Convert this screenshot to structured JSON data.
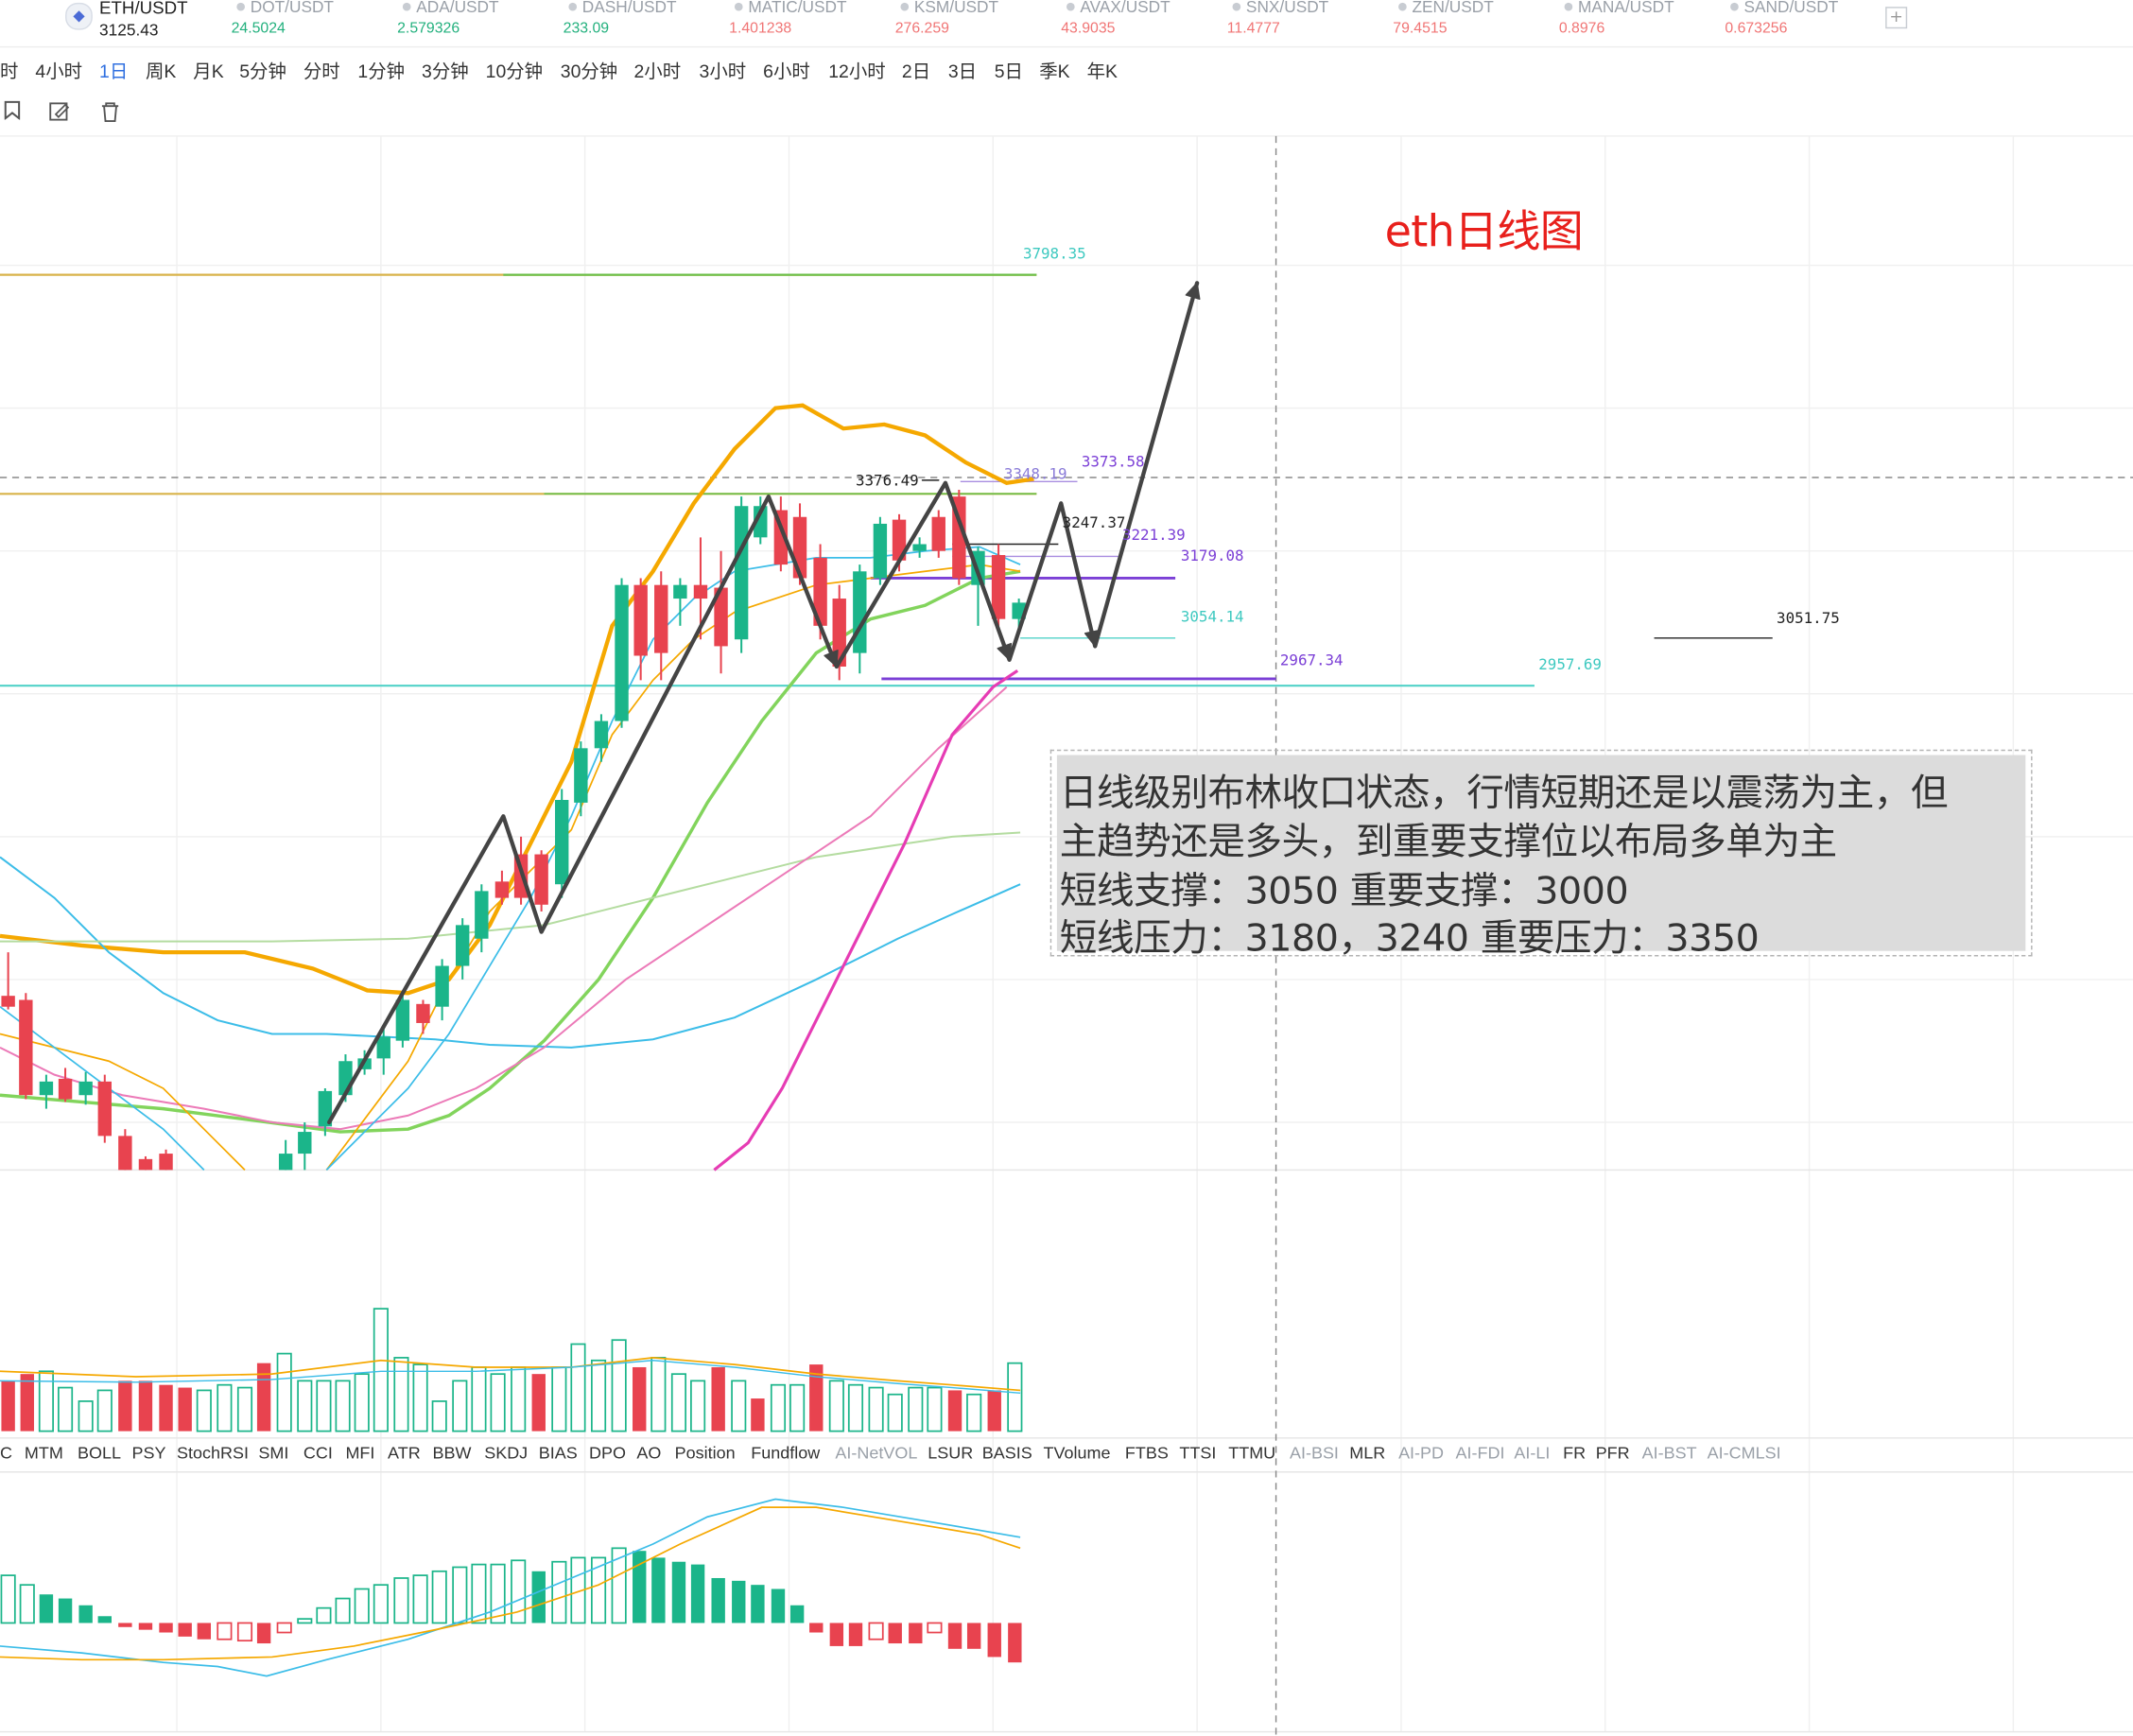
{
  "ticker": {
    "main": {
      "symbol": "ETH/USDT",
      "price": "3125.43"
    },
    "items": [
      {
        "symbol": "DOT/USDT",
        "price": "24.5024",
        "color": "#22b07d"
      },
      {
        "symbol": "ADA/USDT",
        "price": "2.579326",
        "color": "#22b07d"
      },
      {
        "symbol": "DASH/USDT",
        "price": "233.09",
        "color": "#22b07d"
      },
      {
        "symbol": "MATIC/USDT",
        "price": "1.401238",
        "color": "#f07575"
      },
      {
        "symbol": "KSM/USDT",
        "price": "276.259",
        "color": "#f07575"
      },
      {
        "symbol": "AVAX/USDT",
        "price": "43.9035",
        "color": "#f07575"
      },
      {
        "symbol": "SNX/USDT",
        "price": "11.4777",
        "color": "#f07575"
      },
      {
        "symbol": "ZEN/USDT",
        "price": "79.4515",
        "color": "#f07575"
      },
      {
        "symbol": "MANA/USDT",
        "price": "0.8976",
        "color": "#f07575"
      },
      {
        "symbol": "SAND/USDT",
        "price": "0.673256",
        "color": "#f07575"
      }
    ],
    "add_label": "+"
  },
  "timeframes": [
    "时",
    "4小时",
    "1日",
    "周K",
    "月K",
    "5分钟",
    "分时",
    "1分钟",
    "3分钟",
    "10分钟",
    "30分钟",
    "2小时",
    "3小时",
    "6小时",
    "12小时",
    "2日",
    "3日",
    "5日",
    "季K",
    "年K"
  ],
  "active_timeframe": "1日",
  "tools": [
    "bookmark-icon",
    "edit-icon",
    "trash-icon"
  ],
  "indicators": [
    {
      "label": "C",
      "ai": false
    },
    {
      "label": "MTM",
      "ai": false
    },
    {
      "label": "BOLL",
      "ai": false
    },
    {
      "label": "PSY",
      "ai": false
    },
    {
      "label": "StochRSI",
      "ai": false
    },
    {
      "label": "SMI",
      "ai": false
    },
    {
      "label": "CCI",
      "ai": false
    },
    {
      "label": "MFI",
      "ai": false
    },
    {
      "label": "ATR",
      "ai": false
    },
    {
      "label": "BBW",
      "ai": false
    },
    {
      "label": "SKDJ",
      "ai": false
    },
    {
      "label": "BIAS",
      "ai": false
    },
    {
      "label": "DPO",
      "ai": false
    },
    {
      "label": "AO",
      "ai": false
    },
    {
      "label": "Position",
      "ai": false
    },
    {
      "label": "Fundflow",
      "ai": false
    },
    {
      "label": "AI-NetVOL",
      "ai": true
    },
    {
      "label": "LSUR",
      "ai": false
    },
    {
      "label": "BASIS",
      "ai": false
    },
    {
      "label": "TVolume",
      "ai": false
    },
    {
      "label": "FTBS",
      "ai": false
    },
    {
      "label": "TTSI",
      "ai": false
    },
    {
      "label": "TTMU",
      "ai": false
    },
    {
      "label": "AI-BSI",
      "ai": true
    },
    {
      "label": "MLR",
      "ai": false
    },
    {
      "label": "AI-PD",
      "ai": true
    },
    {
      "label": "AI-FDI",
      "ai": true
    },
    {
      "label": "AI-LI",
      "ai": true
    },
    {
      "label": "FR",
      "ai": false
    },
    {
      "label": "PFR",
      "ai": false
    },
    {
      "label": "AI-BST",
      "ai": true
    },
    {
      "label": "AI-CMLSI",
      "ai": true
    }
  ],
  "annotation": {
    "title": "eth日线图",
    "note_lines": [
      "日线级别布林收口状态，行情短期还是以震荡为主，但",
      "主趋势还是多头，到重要支撑位以布局多单为主",
      "短线支撑：3050  重要支撑：3000",
      "短线压力：3180，3240 重要压力：3350"
    ]
  },
  "price_labels": [
    {
      "text": "3798.35",
      "color": "#3ec9c0"
    },
    {
      "text": "3376.49",
      "color": "#222222"
    },
    {
      "text": "3348.19",
      "color": "#8a7bd8"
    },
    {
      "text": "3373.58",
      "color": "#7b3fd6"
    },
    {
      "text": "3247.37",
      "color": "#222222"
    },
    {
      "text": "3221.39",
      "color": "#7b3fd6"
    },
    {
      "text": "3179.08",
      "color": "#7b3fd6"
    },
    {
      "text": "3054.14",
      "color": "#3ec9c0"
    },
    {
      "text": "2967.34",
      "color": "#7b3fd6"
    },
    {
      "text": "2957.69",
      "color": "#3ec9c0"
    },
    {
      "text": "3051.75",
      "color": "#222222"
    }
  ],
  "colors": {
    "up": "#1bb58a",
    "down": "#e8434f",
    "boll_upper": "#f5a800",
    "ma_green": "#82d45c",
    "ma_magenta": "#e63cb4",
    "ma_cyan": "#3cbde8"
  }
}
